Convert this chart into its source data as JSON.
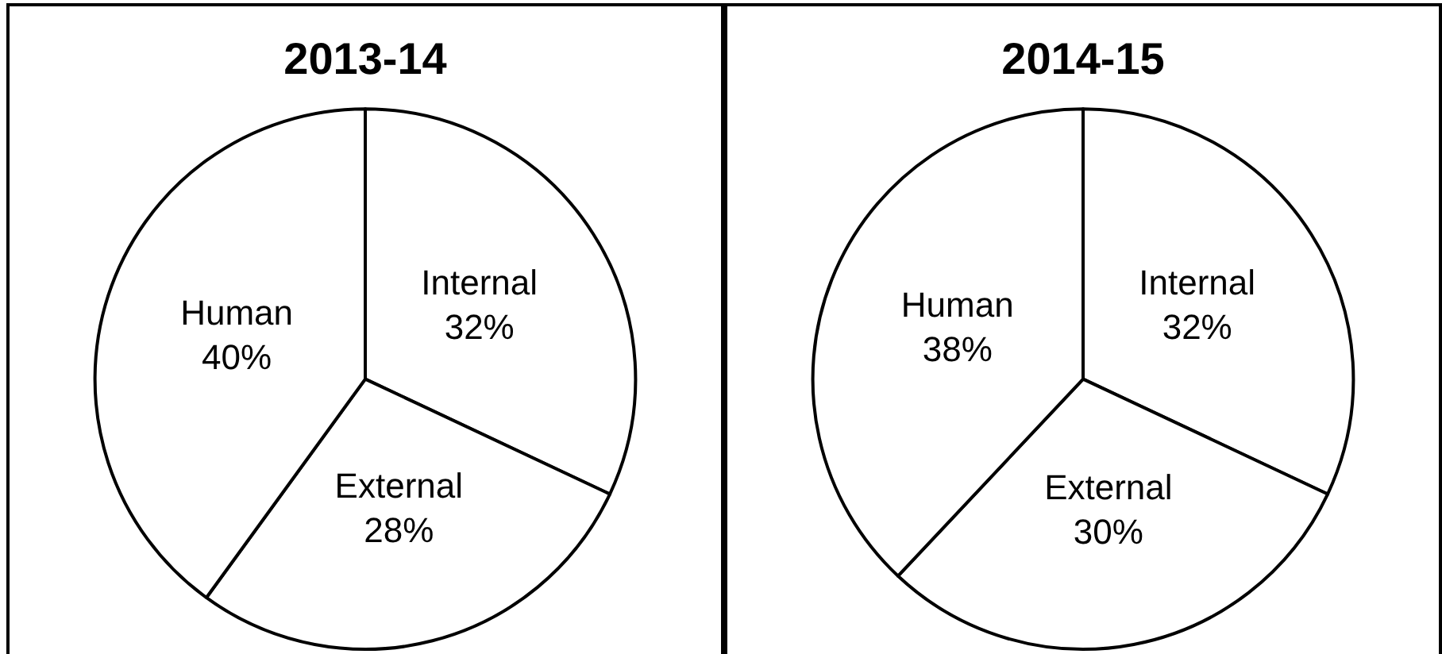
{
  "chart_data": [
    {
      "type": "pie",
      "title": "2013-14",
      "categories": [
        "Internal",
        "External",
        "Human"
      ],
      "values": [
        32,
        28,
        40
      ],
      "value_labels": [
        "32%",
        "28%",
        "40%"
      ],
      "colors": [
        "#ffffff",
        "#ffffff",
        "#ffffff"
      ]
    },
    {
      "type": "pie",
      "title": "2014-15",
      "categories": [
        "Internal",
        "External",
        "Human"
      ],
      "values": [
        32,
        30,
        38
      ],
      "value_labels": [
        "32%",
        "30%",
        "38%"
      ],
      "colors": [
        "#ffffff",
        "#ffffff",
        "#ffffff"
      ]
    }
  ]
}
